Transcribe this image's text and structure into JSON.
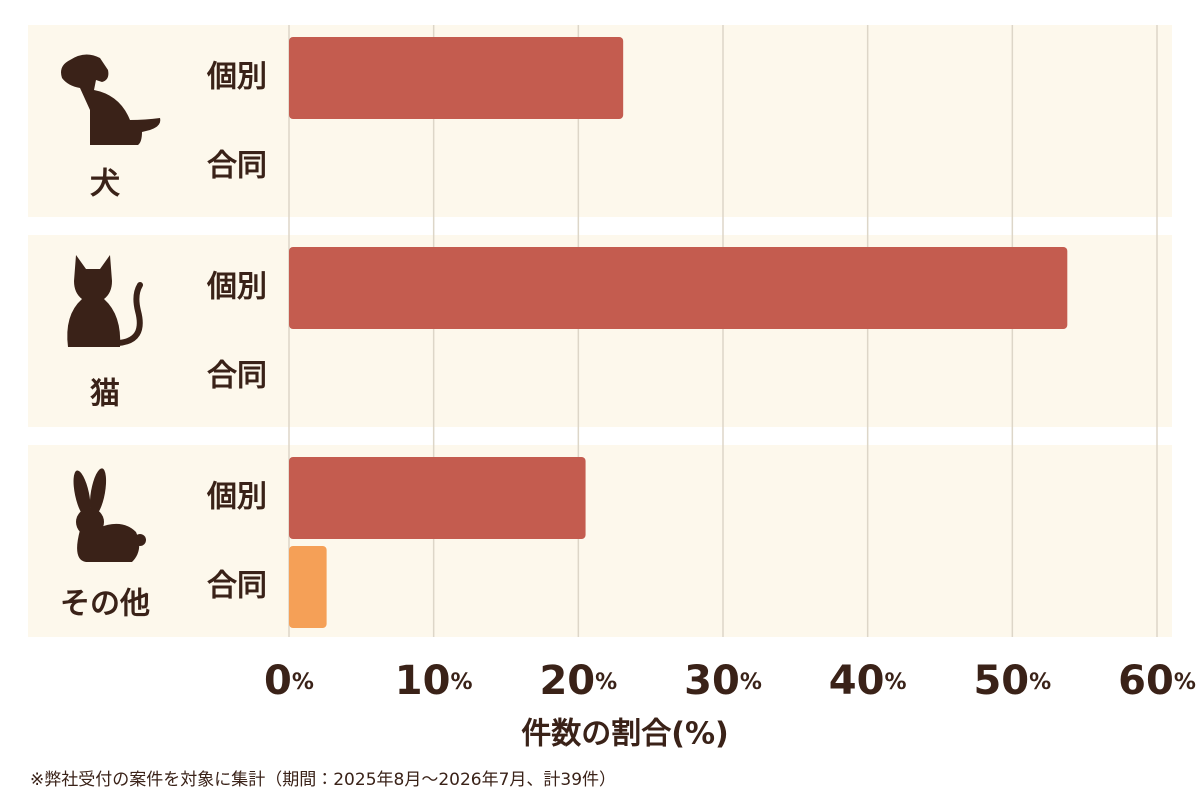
{
  "chart_data": {
    "type": "bar",
    "orientation": "horizontal",
    "categories": [
      "犬",
      "猫",
      "その他"
    ],
    "series": [
      {
        "name": "個別",
        "color": "#c45c4f",
        "values": [
          23.1,
          53.8,
          20.5
        ]
      },
      {
        "name": "合同",
        "color": "#f5a057",
        "values": [
          0,
          0,
          2.6
        ]
      }
    ],
    "xlim": [
      0,
      60
    ],
    "xticks": [
      {
        "value": 0,
        "label": "0%"
      },
      {
        "value": 10,
        "label": "10%"
      },
      {
        "value": 20,
        "label": "20%"
      },
      {
        "value": 30,
        "label": "30%"
      },
      {
        "value": 40,
        "label": "40%"
      },
      {
        "value": 50,
        "label": "50%"
      },
      {
        "value": 60,
        "label": "60%"
      }
    ],
    "xlabel": "件数の割合(%)",
    "grid": true,
    "footnote": "※弊社受付の案件を対象に集計（期間：2025年8月～2026年7月、計39件）"
  }
}
